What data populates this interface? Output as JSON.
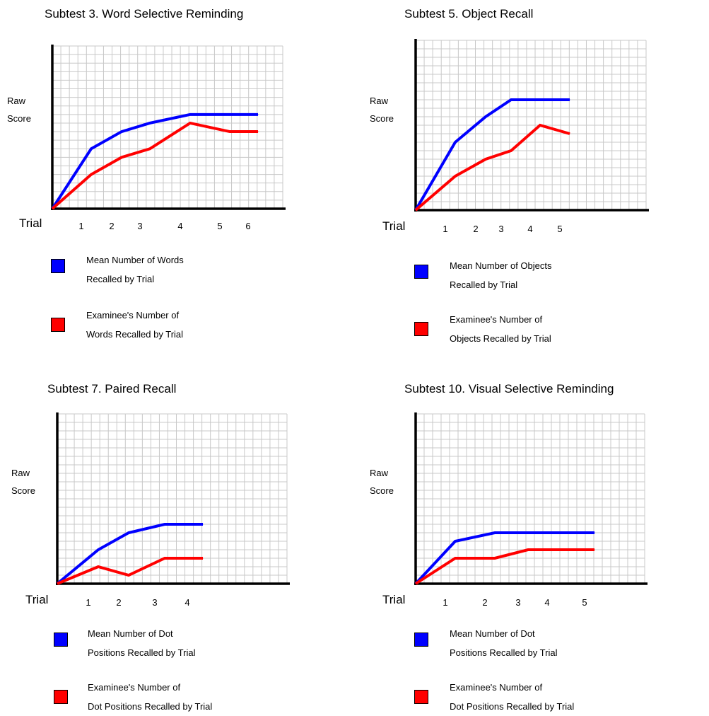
{
  "chart_data": [
    {
      "type": "line",
      "title": "Subtest 3. Word Selective Reminding",
      "ylabel_lines": [
        "Raw",
        "Score"
      ],
      "xlabel": "Trial",
      "tick_labels": [
        "1",
        "2",
        "3",
        "4",
        "5",
        "6"
      ],
      "grid": true,
      "series": [
        {
          "name": "Mean Number of Words Recalled by Trial",
          "color": "#0000ff",
          "x": [
            0,
            1,
            2,
            3,
            4,
            5,
            6
          ],
          "y": [
            0,
            7,
            9,
            10,
            11,
            11,
            11
          ]
        },
        {
          "name": "Examinee's Number of Words Recalled by Trial",
          "color": "#ff0000",
          "x": [
            0,
            1,
            2,
            3,
            4,
            5,
            6
          ],
          "y": [
            0,
            4,
            6,
            7,
            10,
            9,
            9
          ]
        }
      ],
      "legend": [
        {
          "color": "#0000ff",
          "lines": [
            "Mean Number of Words",
            "Recalled by Trial"
          ]
        },
        {
          "color": "#ff0000",
          "lines": [
            "Examinee's Number of",
            "Words Recalled by Trial"
          ]
        }
      ]
    },
    {
      "type": "line",
      "title": "Subtest 5. Object Recall",
      "ylabel_lines": [
        "Raw",
        "Score"
      ],
      "xlabel": "Trial",
      "tick_labels": [
        "1",
        "2",
        "3",
        "4",
        "5"
      ],
      "grid": true,
      "series": [
        {
          "name": "Mean Number of Objects Recalled by Trial",
          "color": "#0000ff",
          "x": [
            0,
            1,
            2,
            3,
            4,
            5
          ],
          "y": [
            0,
            8,
            11,
            13,
            13,
            13
          ]
        },
        {
          "name": "Examinee's Number of Objects Recalled by Trial",
          "color": "#ff0000",
          "x": [
            0,
            1,
            2,
            3,
            4,
            5
          ],
          "y": [
            0,
            4,
            6,
            7,
            10,
            9
          ]
        }
      ],
      "legend": [
        {
          "color": "#0000ff",
          "lines": [
            "Mean Number of Objects",
            "Recalled by Trial"
          ]
        },
        {
          "color": "#ff0000",
          "lines": [
            "Examinee's Number of",
            "Objects Recalled by Trial"
          ]
        }
      ]
    },
    {
      "type": "line",
      "title": "Subtest 7. Paired Recall",
      "ylabel_lines": [
        "Raw",
        "Score"
      ],
      "xlabel": "Trial",
      "tick_labels": [
        "1",
        "2",
        "3",
        "4"
      ],
      "grid": true,
      "series": [
        {
          "name": "Mean Number of Dot Positions Recalled by Trial",
          "color": "#0000ff",
          "x": [
            0,
            1,
            2,
            3,
            4
          ],
          "y": [
            0,
            4,
            6,
            7,
            7
          ]
        },
        {
          "name": "Examinee's Number of Dot Positions Recalled by Trial",
          "color": "#ff0000",
          "x": [
            0,
            1,
            2,
            3,
            4
          ],
          "y": [
            0,
            2,
            1,
            3,
            3
          ]
        }
      ],
      "legend": [
        {
          "color": "#0000ff",
          "lines": [
            "Mean Number of Dot",
            "Positions Recalled by Trial"
          ]
        },
        {
          "color": "#ff0000",
          "lines": [
            "Examinee's Number of",
            "Dot Positions Recalled by Trial"
          ]
        }
      ]
    },
    {
      "type": "line",
      "title": "Subtest 10. Visual Selective Reminding",
      "ylabel_lines": [
        "Raw",
        "Score"
      ],
      "xlabel": "Trial",
      "tick_labels": [
        "1",
        "2",
        "3",
        "4",
        "5"
      ],
      "grid": true,
      "series": [
        {
          "name": "Mean Number of Dot Positions Recalled by Trial",
          "color": "#0000ff",
          "x": [
            0,
            1,
            2,
            3,
            4,
            5
          ],
          "y": [
            0,
            5,
            6,
            6,
            6,
            6
          ]
        },
        {
          "name": "Examinee's Number of Dot Positions Recalled by Trial",
          "color": "#ff0000",
          "x": [
            0,
            1,
            2,
            3,
            4,
            5
          ],
          "y": [
            0,
            3,
            3,
            4,
            4,
            4
          ]
        }
      ],
      "legend": [
        {
          "color": "#0000ff",
          "lines": [
            "Mean Number of Dot",
            "Positions Recalled by Trial"
          ]
        },
        {
          "color": "#ff0000",
          "lines": [
            "Examinee's Number of",
            "Dot Positions Recalled by Trial"
          ]
        }
      ]
    }
  ]
}
